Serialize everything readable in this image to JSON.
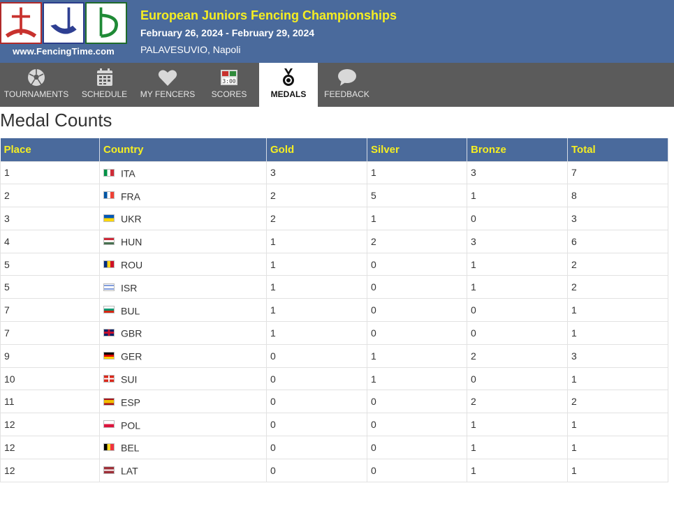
{
  "header": {
    "logo_url": "www.FencingTime.com",
    "title": "European Juniors Fencing Championships",
    "dates": "February 26, 2024 - February 29, 2024",
    "venue": "PALAVESUVIO, Napoli"
  },
  "nav": [
    {
      "label": "TOURNAMENTS",
      "icon": "soccer-ball-icon"
    },
    {
      "label": "SCHEDULE",
      "icon": "calendar-icon"
    },
    {
      "label": "MY FENCERS",
      "icon": "heart-icon"
    },
    {
      "label": "SCORES",
      "icon": "scoreboard-icon"
    },
    {
      "label": "MEDALS",
      "icon": "medal-icon",
      "active": true
    },
    {
      "label": "FEEDBACK",
      "icon": "speech-bubble-icon"
    }
  ],
  "page_title": "Medal Counts",
  "table": {
    "headers": [
      "Place",
      "Country",
      "Gold",
      "Silver",
      "Bronze",
      "Total"
    ],
    "rows": [
      {
        "place": "1",
        "country": "ITA",
        "gold": "3",
        "silver": "1",
        "bronze": "3",
        "total": "7"
      },
      {
        "place": "2",
        "country": "FRA",
        "gold": "2",
        "silver": "5",
        "bronze": "1",
        "total": "8"
      },
      {
        "place": "3",
        "country": "UKR",
        "gold": "2",
        "silver": "1",
        "bronze": "0",
        "total": "3"
      },
      {
        "place": "4",
        "country": "HUN",
        "gold": "1",
        "silver": "2",
        "bronze": "3",
        "total": "6"
      },
      {
        "place": "5",
        "country": "ROU",
        "gold": "1",
        "silver": "0",
        "bronze": "1",
        "total": "2"
      },
      {
        "place": "5",
        "country": "ISR",
        "gold": "1",
        "silver": "0",
        "bronze": "1",
        "total": "2"
      },
      {
        "place": "7",
        "country": "BUL",
        "gold": "1",
        "silver": "0",
        "bronze": "0",
        "total": "1"
      },
      {
        "place": "7",
        "country": "GBR",
        "gold": "1",
        "silver": "0",
        "bronze": "0",
        "total": "1"
      },
      {
        "place": "9",
        "country": "GER",
        "gold": "0",
        "silver": "1",
        "bronze": "2",
        "total": "3"
      },
      {
        "place": "10",
        "country": "SUI",
        "gold": "0",
        "silver": "1",
        "bronze": "0",
        "total": "1"
      },
      {
        "place": "11",
        "country": "ESP",
        "gold": "0",
        "silver": "0",
        "bronze": "2",
        "total": "2"
      },
      {
        "place": "12",
        "country": "POL",
        "gold": "0",
        "silver": "0",
        "bronze": "1",
        "total": "1"
      },
      {
        "place": "12",
        "country": "BEL",
        "gold": "0",
        "silver": "0",
        "bronze": "1",
        "total": "1"
      },
      {
        "place": "12",
        "country": "LAT",
        "gold": "0",
        "silver": "0",
        "bronze": "1",
        "total": "1"
      }
    ]
  },
  "colors": {
    "header_blue": "#4a6a9c",
    "title_yellow": "#f5ee22",
    "nav_gray": "#5b5b5b"
  }
}
